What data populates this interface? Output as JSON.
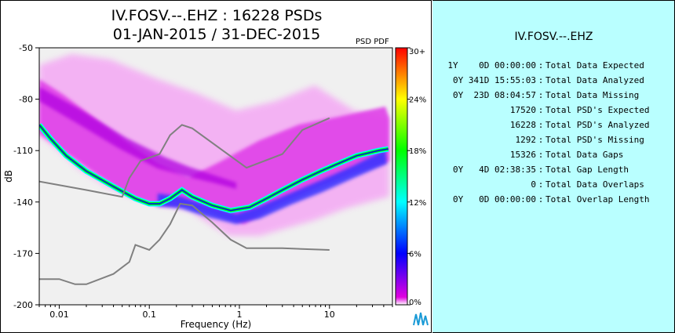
{
  "title_line1": "IV.FOSV.--.EHZ : 16228 PSDs",
  "title_line2": "01-JAN-2015 / 31-DEC-2015",
  "colorbar_label": "PSD PDF",
  "colors": {
    "panel_bg": "#b9ffff",
    "plot_bg": "#f0f0f0",
    "model_line": "#808080"
  },
  "chart_data": {
    "type": "heatmap",
    "xlabel": "Frequency (Hz)",
    "ylabel": "dB",
    "x_scale": "log",
    "xlim": [
      0.006,
      50
    ],
    "ylim": [
      -200,
      -50
    ],
    "x_ticks": [
      {
        "value": 0.01,
        "label": "0.01"
      },
      {
        "value": 0.1,
        "label": "0.1"
      },
      {
        "value": 1,
        "label": "1"
      },
      {
        "value": 10,
        "label": "10"
      }
    ],
    "y_ticks": [
      {
        "value": -50,
        "label": "-50"
      },
      {
        "value": -80,
        "label": "-80"
      },
      {
        "value": -110,
        "label": "-110"
      },
      {
        "value": -140,
        "label": "-140"
      },
      {
        "value": -170,
        "label": "-170"
      },
      {
        "value": -200,
        "label": "-200"
      }
    ],
    "colorbar": {
      "label": "PSD PDF",
      "ticks": [
        "0%",
        "6%",
        "12%",
        "18%",
        "24%",
        "30+"
      ],
      "stops": [
        "#e000e0",
        "#0000ff",
        "#00ffff",
        "#00ff00",
        "#ffff00",
        "#ff8000",
        "#ff0000"
      ]
    },
    "pdf_mode_curve": [
      [
        0.006,
        -95
      ],
      [
        0.008,
        -103
      ],
      [
        0.012,
        -113
      ],
      [
        0.02,
        -122
      ],
      [
        0.04,
        -131
      ],
      [
        0.07,
        -138
      ],
      [
        0.1,
        -141
      ],
      [
        0.13,
        -141
      ],
      [
        0.17,
        -138
      ],
      [
        0.23,
        -133
      ],
      [
        0.3,
        -137
      ],
      [
        0.5,
        -142
      ],
      [
        0.8,
        -145
      ],
      [
        1.3,
        -143
      ],
      [
        2,
        -138
      ],
      [
        3,
        -133
      ],
      [
        5,
        -127
      ],
      [
        8,
        -122
      ],
      [
        12,
        -118
      ],
      [
        20,
        -113
      ],
      [
        35,
        -110
      ],
      [
        45,
        -109
      ]
    ],
    "nhnm": [
      [
        0.006,
        -128
      ],
      [
        0.02,
        -133
      ],
      [
        0.05,
        -137
      ],
      [
        0.06,
        -126
      ],
      [
        0.08,
        -116
      ],
      [
        0.13,
        -112
      ],
      [
        0.17,
        -101
      ],
      [
        0.23,
        -95
      ],
      [
        0.3,
        -97
      ],
      [
        1.2,
        -120
      ],
      [
        3,
        -112
      ],
      [
        5,
        -98
      ],
      [
        10,
        -91
      ]
    ],
    "nlnm": [
      [
        0.006,
        -185
      ],
      [
        0.01,
        -185
      ],
      [
        0.015,
        -188
      ],
      [
        0.02,
        -188
      ],
      [
        0.04,
        -182
      ],
      [
        0.06,
        -175
      ],
      [
        0.07,
        -165
      ],
      [
        0.1,
        -168
      ],
      [
        0.13,
        -162
      ],
      [
        0.17,
        -153
      ],
      [
        0.22,
        -141
      ],
      [
        0.3,
        -142
      ],
      [
        0.5,
        -152
      ],
      [
        0.8,
        -162
      ],
      [
        1.2,
        -167
      ],
      [
        3,
        -167
      ],
      [
        10,
        -168
      ]
    ]
  },
  "stats": {
    "title": "IV.FOSV.--.EHZ",
    "rows": [
      {
        "value": "1Y    0D 00:00:00",
        "label": "Total Data Expected"
      },
      {
        "value": "0Y 341D 15:55:03",
        "label": "Total Data Analyzed"
      },
      {
        "value": "0Y  23D 08:04:57",
        "label": "Total Data Missing"
      },
      {
        "value": "17520",
        "label": "Total PSD's Expected"
      },
      {
        "value": "16228",
        "label": "Total PSD's Analyzed"
      },
      {
        "value": "1292",
        "label": "Total PSD's Missing"
      },
      {
        "value": "15326",
        "label": "Total Data Gaps"
      },
      {
        "value": "0Y   4D 02:38:35",
        "label": "Total Gap Length"
      },
      {
        "value": "0",
        "label": "Total Data Overlaps"
      },
      {
        "value": "0Y   0D 00:00:00",
        "label": "Total Overlap Length"
      }
    ]
  }
}
